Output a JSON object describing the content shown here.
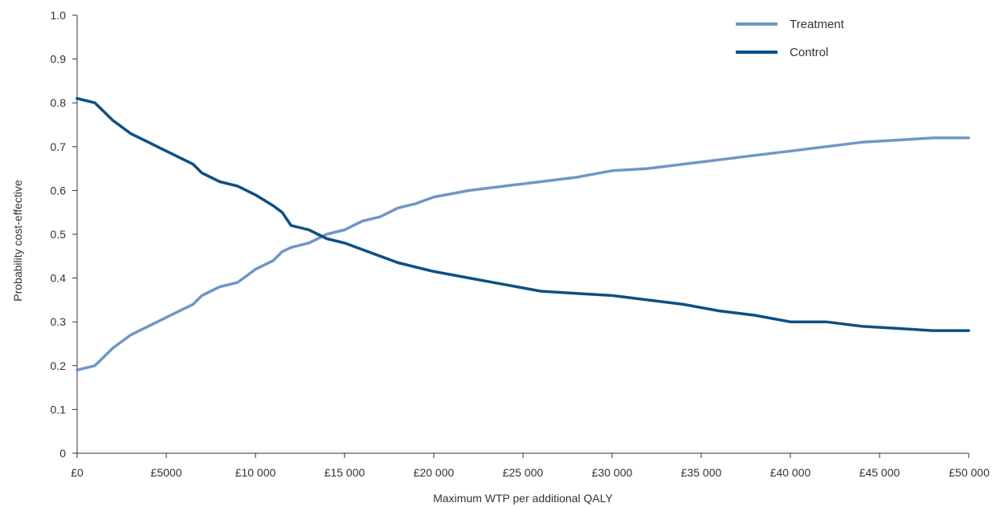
{
  "chart_data": {
    "type": "line",
    "title": "",
    "xlabel": "Maximum WTP per additional QALY",
    "ylabel": "Probability cost-effective",
    "xlim": [
      0,
      50000
    ],
    "ylim": [
      0,
      1.0
    ],
    "grid": false,
    "legend_position": "top-right",
    "x_ticks": [
      0,
      5000,
      10000,
      15000,
      20000,
      25000,
      30000,
      35000,
      40000,
      45000,
      50000
    ],
    "x_tick_labels": [
      "£0",
      "£5000",
      "£10 000",
      "£15 000",
      "£20 000",
      "£25 000",
      "£30 000",
      "£35 000",
      "£40 000",
      "£45 000",
      "£50 000"
    ],
    "y_ticks": [
      0,
      0.1,
      0.2,
      0.3,
      0.4,
      0.5,
      0.6,
      0.7,
      0.8,
      0.9,
      1.0
    ],
    "y_tick_labels": [
      "0",
      "0.1",
      "0.2",
      "0.3",
      "0.4",
      "0.5",
      "0.6",
      "0.7",
      "0.8",
      "0.9",
      "1.0"
    ],
    "x": [
      0,
      1000,
      2000,
      3000,
      4000,
      5000,
      6000,
      6500,
      7000,
      8000,
      9000,
      10000,
      11000,
      11500,
      12000,
      13000,
      14000,
      15000,
      16000,
      17000,
      18000,
      19000,
      20000,
      22000,
      24000,
      26000,
      28000,
      30000,
      32000,
      34000,
      36000,
      38000,
      40000,
      42000,
      44000,
      46000,
      48000,
      50000
    ],
    "series": [
      {
        "name": "Treatment",
        "color": "#7096c4",
        "values": [
          0.19,
          0.2,
          0.24,
          0.27,
          0.29,
          0.31,
          0.33,
          0.34,
          0.36,
          0.38,
          0.39,
          0.42,
          0.44,
          0.46,
          0.47,
          0.48,
          0.5,
          0.51,
          0.53,
          0.54,
          0.56,
          0.57,
          0.585,
          0.6,
          0.61,
          0.62,
          0.63,
          0.645,
          0.65,
          0.66,
          0.67,
          0.68,
          0.69,
          0.7,
          0.71,
          0.715,
          0.72,
          0.72
        ]
      },
      {
        "name": "Control",
        "color": "#0e4f82",
        "values": [
          0.81,
          0.8,
          0.76,
          0.73,
          0.71,
          0.69,
          0.67,
          0.66,
          0.64,
          0.62,
          0.61,
          0.59,
          0.565,
          0.55,
          0.52,
          0.51,
          0.49,
          0.48,
          0.465,
          0.45,
          0.435,
          0.425,
          0.415,
          0.4,
          0.385,
          0.37,
          0.365,
          0.36,
          0.35,
          0.34,
          0.325,
          0.315,
          0.3,
          0.3,
          0.29,
          0.285,
          0.28,
          0.28
        ]
      }
    ]
  }
}
